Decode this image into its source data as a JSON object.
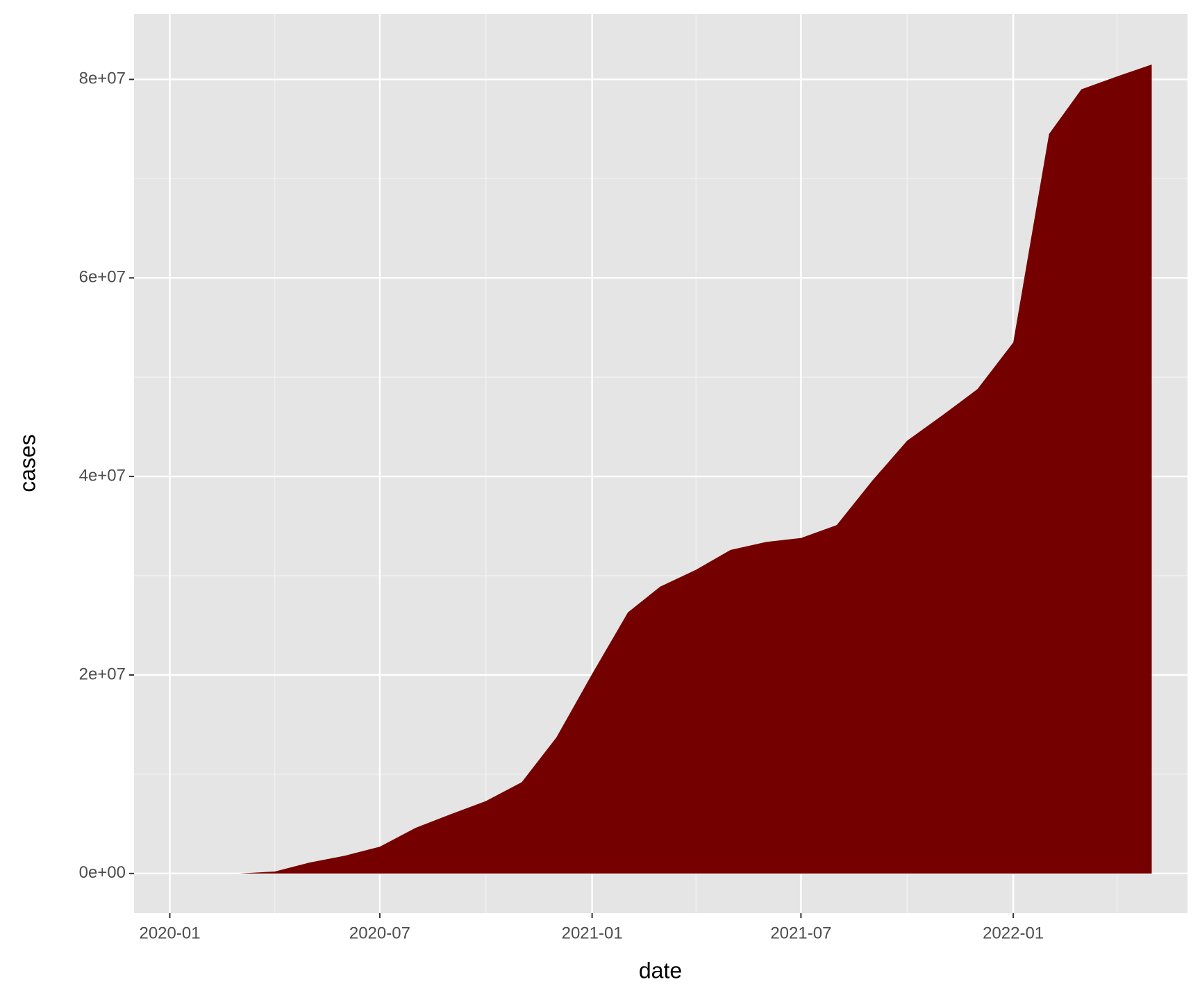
{
  "chart_data": {
    "type": "area",
    "x_label": "date",
    "y_label": "cases",
    "color": "#750000",
    "x": [
      "2020-02",
      "2020-03",
      "2020-04",
      "2020-05",
      "2020-06",
      "2020-07",
      "2020-08",
      "2020-09",
      "2020-10",
      "2020-11",
      "2020-12",
      "2021-01",
      "2021-02",
      "2021-03",
      "2021-04",
      "2021-05",
      "2021-06",
      "2021-07",
      "2021-08",
      "2021-09",
      "2021-10",
      "2021-11",
      "2021-12",
      "2022-01",
      "2022-02",
      "2022-03",
      "2022-04",
      "2022-05"
    ],
    "values": [
      10,
      30,
      200000,
      1100000,
      1800000,
      2700000,
      4600000,
      6000000,
      7300000,
      9200000,
      13700000,
      20100000,
      26300000,
      28900000,
      30600000,
      32600000,
      33400000,
      33800000,
      35100000,
      39600000,
      43600000,
      46200000,
      48800000,
      53500000,
      74500000,
      79000000,
      80300000,
      81500000
    ],
    "xlim": [
      "2019-12",
      "2022-06"
    ],
    "xticks": [
      "2020-01",
      "2020-07",
      "2021-01",
      "2021-07",
      "2022-01"
    ],
    "x_minor_grid": [
      "2020-04",
      "2020-10",
      "2021-04",
      "2021-10",
      "2022-04"
    ],
    "ylim": [
      -4000000,
      86600000
    ],
    "yticks": [
      {
        "value": 0,
        "label": "0e+00"
      },
      {
        "value": 20000000,
        "label": "2e+07"
      },
      {
        "value": 40000000,
        "label": "4e+07"
      },
      {
        "value": 60000000,
        "label": "6e+07"
      },
      {
        "value": 80000000,
        "label": "8e+07"
      }
    ],
    "y_minor_grid": [
      10000000,
      30000000,
      50000000,
      70000000
    ],
    "grid": true
  }
}
